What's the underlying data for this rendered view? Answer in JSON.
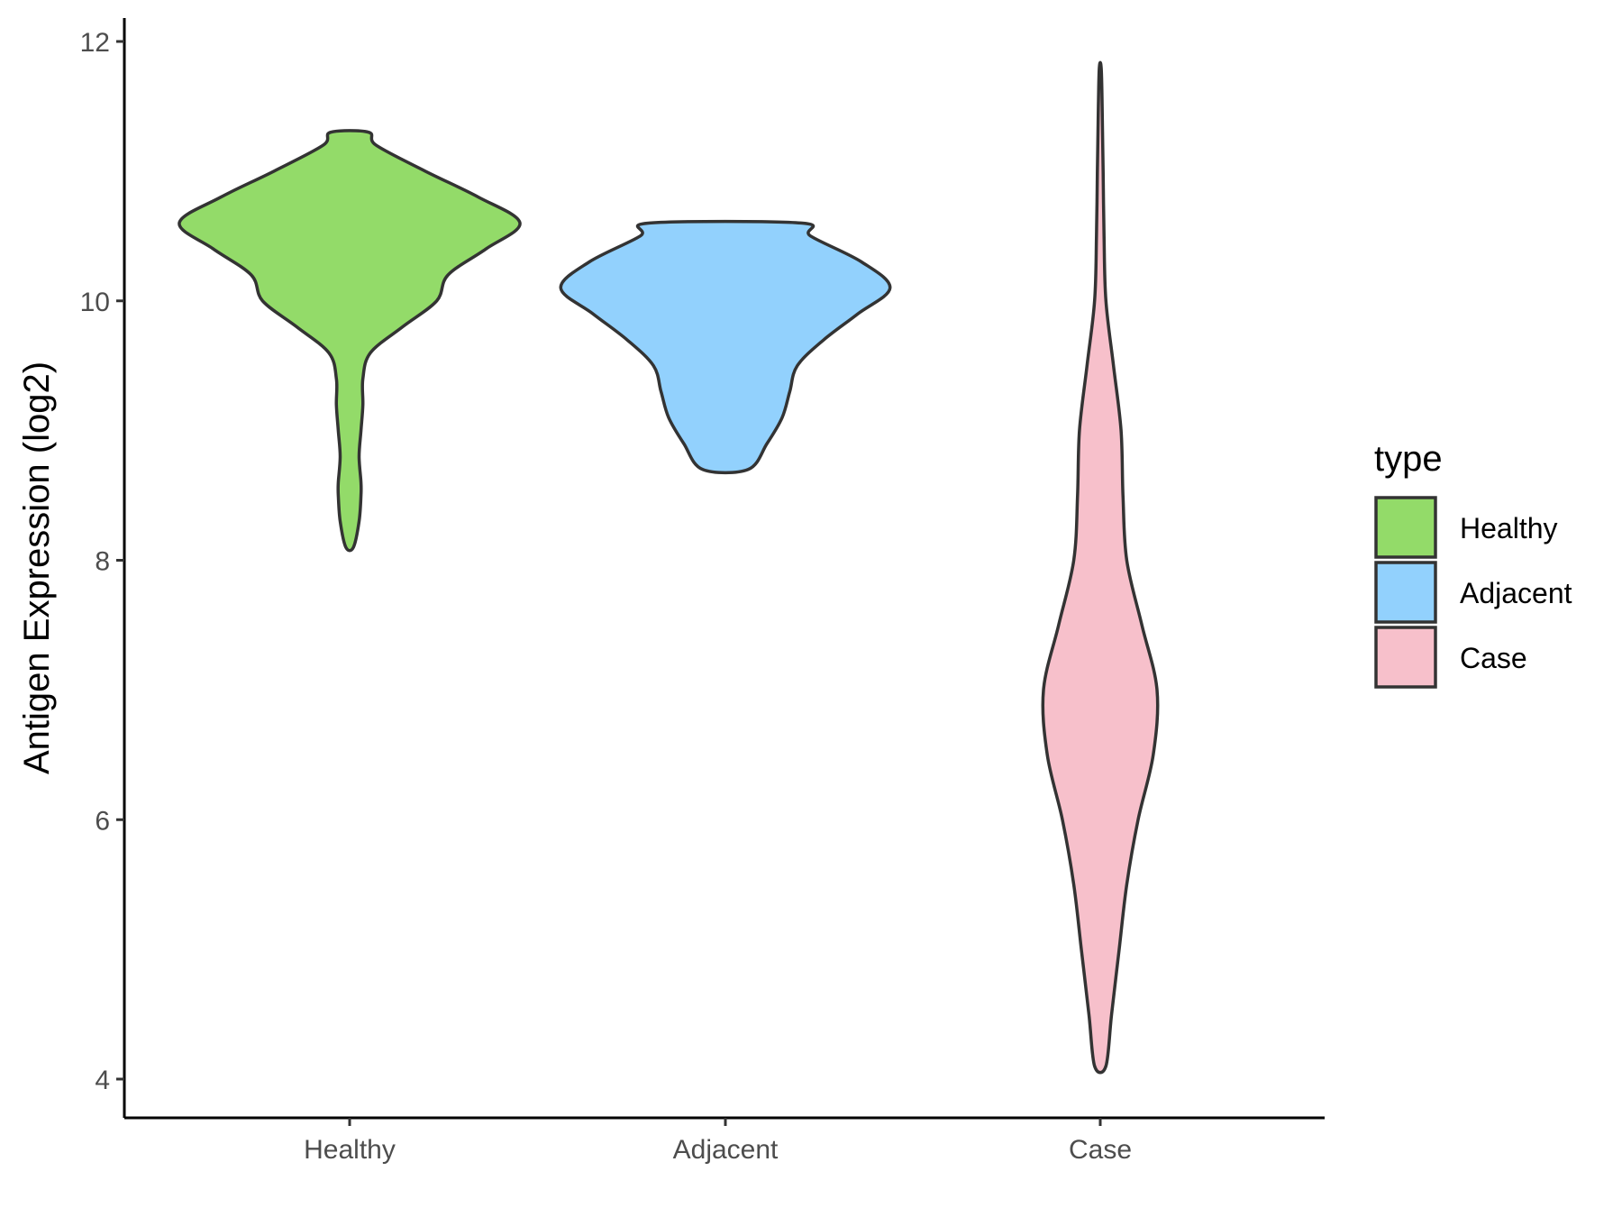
{
  "chart_data": {
    "type": "violin",
    "title": "",
    "xlabel": "",
    "ylabel": "Antigen Expression (log2)",
    "ylim": [
      3.8,
      12.2
    ],
    "yticks": [
      4,
      6,
      8,
      10,
      12
    ],
    "categories": [
      "Healthy",
      "Adjacent",
      "Case"
    ],
    "grid": false,
    "legend": {
      "title": "type",
      "position": "right",
      "items": [
        {
          "label": "Healthy",
          "color": "#93DB69"
        },
        {
          "label": "Adjacent",
          "color": "#92D1FD"
        },
        {
          "label": "Case",
          "color": "#F7C0CB"
        }
      ]
    },
    "series": [
      {
        "name": "Healthy",
        "color": "#93DB69",
        "min": 8.1,
        "max": 11.3,
        "profile": [
          [
            8.1,
            0.02
          ],
          [
            8.3,
            0.05
          ],
          [
            8.5,
            0.06
          ],
          [
            8.6,
            0.06
          ],
          [
            8.8,
            0.05
          ],
          [
            9.0,
            0.06
          ],
          [
            9.2,
            0.07
          ],
          [
            9.4,
            0.07
          ],
          [
            9.6,
            0.11
          ],
          [
            9.8,
            0.28
          ],
          [
            10.0,
            0.46
          ],
          [
            10.2,
            0.52
          ],
          [
            10.4,
            0.72
          ],
          [
            10.6,
            0.9
          ],
          [
            10.8,
            0.68
          ],
          [
            11.0,
            0.4
          ],
          [
            11.2,
            0.14
          ],
          [
            11.3,
            0.1
          ]
        ]
      },
      {
        "name": "Adjacent",
        "color": "#92D1FD",
        "min": 8.7,
        "max": 10.6,
        "profile": [
          [
            8.7,
            0.12
          ],
          [
            8.9,
            0.22
          ],
          [
            9.1,
            0.3
          ],
          [
            9.3,
            0.34
          ],
          [
            9.5,
            0.38
          ],
          [
            9.7,
            0.52
          ],
          [
            9.9,
            0.7
          ],
          [
            10.1,
            0.87
          ],
          [
            10.3,
            0.72
          ],
          [
            10.5,
            0.45
          ],
          [
            10.6,
            0.4
          ]
        ]
      },
      {
        "name": "Case",
        "color": "#F7C0CB",
        "min": 4.1,
        "max": 11.8,
        "profile": [
          [
            4.1,
            0.03
          ],
          [
            4.5,
            0.06
          ],
          [
            5.0,
            0.1
          ],
          [
            5.5,
            0.14
          ],
          [
            6.0,
            0.2
          ],
          [
            6.5,
            0.28
          ],
          [
            7.0,
            0.3
          ],
          [
            7.5,
            0.22
          ],
          [
            8.0,
            0.14
          ],
          [
            8.5,
            0.12
          ],
          [
            9.0,
            0.11
          ],
          [
            9.5,
            0.07
          ],
          [
            10.0,
            0.03
          ],
          [
            10.5,
            0.02
          ],
          [
            11.0,
            0.015
          ],
          [
            11.5,
            0.01
          ],
          [
            11.8,
            0.005
          ]
        ]
      }
    ]
  }
}
